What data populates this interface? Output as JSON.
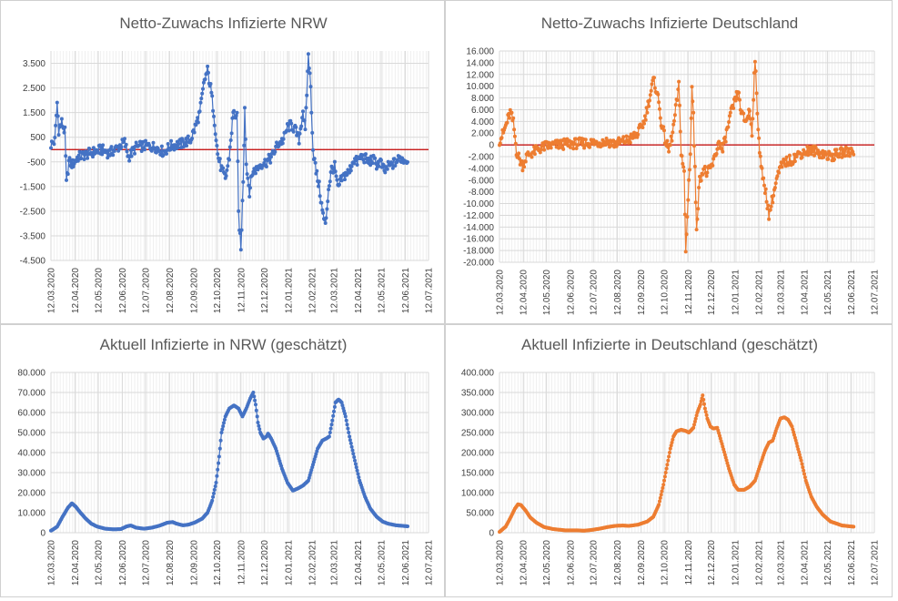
{
  "colors": {
    "nrw": "#4472C4",
    "de": "#ED7D31",
    "zero_line": "#C00000",
    "grid": "#D9D9D9"
  },
  "date_ticks": [
    "12.03.2020",
    "12.04.2020",
    "12.05.2020",
    "12.06.2020",
    "12.07.2020",
    "12.08.2020",
    "12.09.2020",
    "12.10.2020",
    "12.11.2020",
    "12.12.2020",
    "12.01.2021",
    "12.02.2021",
    "12.03.2021",
    "12.04.2021",
    "12.05.2021",
    "12.06.2021",
    "12.07.2021"
  ],
  "chart_data": [
    {
      "id": "nrw_net",
      "type": "line",
      "title": "Netto-Zuwachs Infizierte NRW",
      "series_color_key": "nrw",
      "zero_line": true,
      "ylim": [
        -4500,
        4000
      ],
      "y_ticks": [
        3500,
        2500,
        1500,
        500,
        -500,
        -1500,
        -2500,
        -3500,
        -4500
      ],
      "y_tick_labels": [
        "3.500",
        "2.500",
        "1.500",
        "500",
        "-500",
        "-1.500",
        "-2.500",
        "-3.500",
        "-4.500"
      ],
      "x_range_days": [
        0,
        487
      ],
      "last_day": 460,
      "anchors": [
        [
          0,
          200
        ],
        [
          5,
          350
        ],
        [
          8,
          1900
        ],
        [
          10,
          800
        ],
        [
          14,
          1100
        ],
        [
          18,
          700
        ],
        [
          20,
          -1400
        ],
        [
          23,
          -500
        ],
        [
          28,
          -600
        ],
        [
          35,
          -300
        ],
        [
          45,
          -200
        ],
        [
          55,
          -100
        ],
        [
          65,
          0
        ],
        [
          75,
          -150
        ],
        [
          85,
          50
        ],
        [
          95,
          300
        ],
        [
          100,
          -300
        ],
        [
          110,
          100
        ],
        [
          120,
          150
        ],
        [
          135,
          100
        ],
        [
          145,
          -100
        ],
        [
          155,
          150
        ],
        [
          170,
          250
        ],
        [
          180,
          400
        ],
        [
          185,
          800
        ],
        [
          192,
          1500
        ],
        [
          198,
          2800
        ],
        [
          202,
          3200
        ],
        [
          206,
          2500
        ],
        [
          210,
          1500
        ],
        [
          215,
          -200
        ],
        [
          220,
          -800
        ],
        [
          225,
          -1200
        ],
        [
          230,
          -300
        ],
        [
          235,
          1500
        ],
        [
          240,
          1300
        ],
        [
          242,
          -2600
        ],
        [
          245,
          -4100
        ],
        [
          248,
          -1200
        ],
        [
          250,
          1800
        ],
        [
          252,
          -600
        ],
        [
          256,
          -1700
        ],
        [
          260,
          -900
        ],
        [
          265,
          -800
        ],
        [
          270,
          -600
        ],
        [
          278,
          -500
        ],
        [
          285,
          -300
        ],
        [
          292,
          200
        ],
        [
          300,
          400
        ],
        [
          305,
          900
        ],
        [
          310,
          1000
        ],
        [
          315,
          800
        ],
        [
          320,
          400
        ],
        [
          325,
          1600
        ],
        [
          328,
          700
        ],
        [
          332,
          3900
        ],
        [
          335,
          2500
        ],
        [
          338,
          0
        ],
        [
          342,
          -900
        ],
        [
          346,
          -1500
        ],
        [
          350,
          -2500
        ],
        [
          354,
          -3100
        ],
        [
          358,
          -1600
        ],
        [
          362,
          -800
        ],
        [
          366,
          -700
        ],
        [
          370,
          -1600
        ],
        [
          375,
          -1200
        ],
        [
          380,
          -1000
        ],
        [
          385,
          -900
        ],
        [
          390,
          -400
        ],
        [
          395,
          -500
        ],
        [
          400,
          -300
        ],
        [
          405,
          -350
        ],
        [
          410,
          -500
        ],
        [
          415,
          -400
        ],
        [
          420,
          -600
        ],
        [
          425,
          -500
        ],
        [
          430,
          -900
        ],
        [
          435,
          -700
        ],
        [
          440,
          -600
        ],
        [
          445,
          -500
        ],
        [
          450,
          -350
        ],
        [
          455,
          -400
        ],
        [
          460,
          -450
        ]
      ]
    },
    {
      "id": "de_net",
      "type": "line",
      "title": "Netto-Zuwachs Infizierte Deutschland",
      "series_color_key": "de",
      "zero_line": true,
      "ylim": [
        -20000,
        16000
      ],
      "y_ticks": [
        16000,
        14000,
        12000,
        10000,
        8000,
        6000,
        4000,
        2000,
        0,
        -2000,
        -4000,
        -6000,
        -8000,
        -10000,
        -12000,
        -14000,
        -16000,
        -18000,
        -20000
      ],
      "y_tick_labels": [
        "16.000",
        "14.000",
        "12.000",
        "10.000",
        "8.000",
        "6.000",
        "4.000",
        "2.000",
        "0",
        "-2.000",
        "-4.000",
        "-6.000",
        "-8.000",
        "-10.000",
        "-12.000",
        "-14.000",
        "-16.000",
        "-18.000",
        "-20.000"
      ],
      "x_range_days": [
        0,
        487
      ],
      "last_day": 460,
      "anchors": [
        [
          0,
          800
        ],
        [
          5,
          2000
        ],
        [
          10,
          4000
        ],
        [
          14,
          5500
        ],
        [
          18,
          3800
        ],
        [
          22,
          -1000
        ],
        [
          26,
          -2500
        ],
        [
          30,
          -3500
        ],
        [
          35,
          -2000
        ],
        [
          40,
          -1500
        ],
        [
          50,
          -800
        ],
        [
          60,
          -200
        ],
        [
          75,
          0
        ],
        [
          90,
          200
        ],
        [
          110,
          300
        ],
        [
          125,
          400
        ],
        [
          140,
          600
        ],
        [
          150,
          200
        ],
        [
          160,
          600
        ],
        [
          170,
          1000
        ],
        [
          180,
          2000
        ],
        [
          188,
          4000
        ],
        [
          195,
          8000
        ],
        [
          200,
          11000
        ],
        [
          205,
          9000
        ],
        [
          210,
          4000
        ],
        [
          215,
          1000
        ],
        [
          220,
          -1000
        ],
        [
          225,
          2000
        ],
        [
          230,
          7000
        ],
        [
          233,
          10000
        ],
        [
          236,
          -1000
        ],
        [
          240,
          -5000
        ],
        [
          242,
          -18500
        ],
        [
          245,
          -9000
        ],
        [
          248,
          -1000
        ],
        [
          250,
          10000
        ],
        [
          252,
          5000
        ],
        [
          256,
          -14000
        ],
        [
          260,
          -6000
        ],
        [
          265,
          -4000
        ],
        [
          270,
          -5000
        ],
        [
          278,
          -3000
        ],
        [
          285,
          500
        ],
        [
          290,
          -1000
        ],
        [
          295,
          2000
        ],
        [
          300,
          5000
        ],
        [
          305,
          7000
        ],
        [
          310,
          9000
        ],
        [
          315,
          5000
        ],
        [
          320,
          4000
        ],
        [
          325,
          6000
        ],
        [
          328,
          2000
        ],
        [
          332,
          15000
        ],
        [
          335,
          5000
        ],
        [
          338,
          -500
        ],
        [
          342,
          -6000
        ],
        [
          346,
          -8000
        ],
        [
          350,
          -12000
        ],
        [
          355,
          -9000
        ],
        [
          360,
          -6000
        ],
        [
          365,
          -4000
        ],
        [
          370,
          -3000
        ],
        [
          380,
          -2500
        ],
        [
          390,
          -1500
        ],
        [
          400,
          -1000
        ],
        [
          410,
          -1000
        ],
        [
          420,
          -1500
        ],
        [
          430,
          -2000
        ],
        [
          440,
          -1500
        ],
        [
          450,
          -1200
        ],
        [
          460,
          -1000
        ]
      ]
    },
    {
      "id": "nrw_active",
      "type": "line",
      "title": "Aktuell Infizierte in NRW (geschätzt)",
      "series_color_key": "nrw",
      "zero_line": false,
      "ylim": [
        0,
        80000
      ],
      "y_ticks": [
        80000,
        70000,
        60000,
        50000,
        40000,
        30000,
        20000,
        10000,
        0
      ],
      "y_tick_labels": [
        "80.000",
        "70.000",
        "60.000",
        "50.000",
        "40.000",
        "30.000",
        "20.000",
        "10.000",
        "0"
      ],
      "x_range_days": [
        0,
        487
      ],
      "last_day": 460,
      "anchors": [
        [
          0,
          1000
        ],
        [
          8,
          3000
        ],
        [
          15,
          8000
        ],
        [
          22,
          12500
        ],
        [
          27,
          14700
        ],
        [
          32,
          13000
        ],
        [
          38,
          10000
        ],
        [
          45,
          7000
        ],
        [
          52,
          4500
        ],
        [
          60,
          3000
        ],
        [
          70,
          2000
        ],
        [
          80,
          1700
        ],
        [
          90,
          1800
        ],
        [
          98,
          3200
        ],
        [
          103,
          3600
        ],
        [
          110,
          2500
        ],
        [
          120,
          2000
        ],
        [
          130,
          2500
        ],
        [
          140,
          3500
        ],
        [
          150,
          5000
        ],
        [
          157,
          5300
        ],
        [
          162,
          4500
        ],
        [
          170,
          3700
        ],
        [
          177,
          4000
        ],
        [
          185,
          5000
        ],
        [
          195,
          7000
        ],
        [
          202,
          10000
        ],
        [
          208,
          16000
        ],
        [
          213,
          25000
        ],
        [
          217,
          38000
        ],
        [
          220,
          50000
        ],
        [
          225,
          58000
        ],
        [
          230,
          62000
        ],
        [
          236,
          63500
        ],
        [
          242,
          62000
        ],
        [
          247,
          58000
        ],
        [
          252,
          62000
        ],
        [
          257,
          67000
        ],
        [
          261,
          70000
        ],
        [
          264,
          64000
        ],
        [
          267,
          55000
        ],
        [
          270,
          50000
        ],
        [
          274,
          47000
        ],
        [
          278,
          48000
        ],
        [
          280,
          49500
        ],
        [
          284,
          47000
        ],
        [
          290,
          42000
        ],
        [
          298,
          32000
        ],
        [
          305,
          25000
        ],
        [
          312,
          21000
        ],
        [
          318,
          22000
        ],
        [
          325,
          23500
        ],
        [
          332,
          26000
        ],
        [
          338,
          34000
        ],
        [
          344,
          42000
        ],
        [
          350,
          46000
        ],
        [
          355,
          47000
        ],
        [
          359,
          48000
        ],
        [
          363,
          56000
        ],
        [
          367,
          65000
        ],
        [
          371,
          66500
        ],
        [
          375,
          65000
        ],
        [
          380,
          58000
        ],
        [
          385,
          48000
        ],
        [
          392,
          36000
        ],
        [
          398,
          26000
        ],
        [
          405,
          18000
        ],
        [
          412,
          12000
        ],
        [
          420,
          8000
        ],
        [
          428,
          5500
        ],
        [
          435,
          4500
        ],
        [
          445,
          3700
        ],
        [
          460,
          3200
        ]
      ]
    },
    {
      "id": "de_active",
      "type": "line",
      "title": "Aktuell Infizierte in Deutschland (geschätzt)",
      "series_color_key": "de",
      "zero_line": false,
      "ylim": [
        0,
        400000
      ],
      "y_ticks": [
        400000,
        350000,
        300000,
        250000,
        200000,
        150000,
        100000,
        50000,
        0
      ],
      "y_tick_labels": [
        "400.000",
        "350.000",
        "300.000",
        "250.000",
        "200.000",
        "150.000",
        "100.000",
        "50.000",
        "0"
      ],
      "x_range_days": [
        0,
        487
      ],
      "last_day": 460,
      "anchors": [
        [
          0,
          2000
        ],
        [
          8,
          15000
        ],
        [
          15,
          40000
        ],
        [
          20,
          60000
        ],
        [
          24,
          71000
        ],
        [
          28,
          69000
        ],
        [
          34,
          55000
        ],
        [
          40,
          38000
        ],
        [
          48,
          25000
        ],
        [
          58,
          14000
        ],
        [
          70,
          9000
        ],
        [
          85,
          6000
        ],
        [
          100,
          6000
        ],
        [
          110,
          5000
        ],
        [
          120,
          7000
        ],
        [
          130,
          10000
        ],
        [
          140,
          14000
        ],
        [
          150,
          17000
        ],
        [
          160,
          18000
        ],
        [
          168,
          17000
        ],
        [
          180,
          20000
        ],
        [
          192,
          28000
        ],
        [
          200,
          40000
        ],
        [
          207,
          70000
        ],
        [
          213,
          120000
        ],
        [
          218,
          170000
        ],
        [
          222,
          210000
        ],
        [
          226,
          240000
        ],
        [
          230,
          253000
        ],
        [
          236,
          257000
        ],
        [
          242,
          254000
        ],
        [
          246,
          250000
        ],
        [
          252,
          262000
        ],
        [
          257,
          300000
        ],
        [
          261,
          320000
        ],
        [
          264,
          343000
        ],
        [
          267,
          310000
        ],
        [
          270,
          285000
        ],
        [
          274,
          265000
        ],
        [
          278,
          260000
        ],
        [
          283,
          262000
        ],
        [
          290,
          215000
        ],
        [
          298,
          160000
        ],
        [
          305,
          120000
        ],
        [
          310,
          107000
        ],
        [
          318,
          107000
        ],
        [
          325,
          115000
        ],
        [
          332,
          130000
        ],
        [
          338,
          165000
        ],
        [
          345,
          205000
        ],
        [
          350,
          225000
        ],
        [
          355,
          230000
        ],
        [
          360,
          260000
        ],
        [
          365,
          285000
        ],
        [
          370,
          288000
        ],
        [
          375,
          282000
        ],
        [
          380,
          265000
        ],
        [
          385,
          230000
        ],
        [
          392,
          180000
        ],
        [
          398,
          130000
        ],
        [
          405,
          90000
        ],
        [
          412,
          65000
        ],
        [
          420,
          45000
        ],
        [
          430,
          28000
        ],
        [
          445,
          18000
        ],
        [
          460,
          15000
        ]
      ]
    }
  ]
}
